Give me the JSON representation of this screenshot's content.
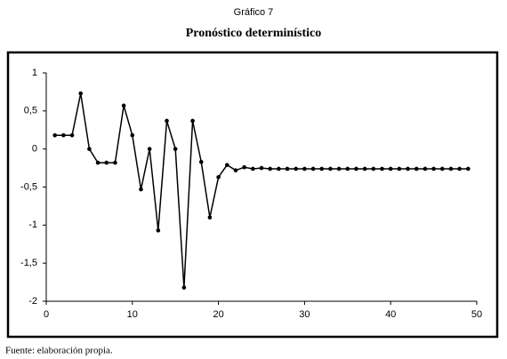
{
  "header": "Gráfico 7",
  "footer": "Fuente: elaboración propia.",
  "chart_data": {
    "type": "line",
    "title": "Pronóstico determinístico",
    "x": [
      1,
      2,
      3,
      4,
      5,
      6,
      7,
      8,
      9,
      10,
      11,
      12,
      13,
      14,
      15,
      16,
      17,
      18,
      19,
      20,
      21,
      22,
      23,
      24,
      25,
      26,
      27,
      28,
      29,
      30,
      31,
      32,
      33,
      34,
      35,
      36,
      37,
      38,
      39,
      40,
      41,
      42,
      43,
      44,
      45,
      46,
      47,
      48,
      49
    ],
    "values": [
      0.18,
      0.18,
      0.18,
      0.73,
      0.0,
      -0.18,
      -0.18,
      -0.18,
      0.57,
      0.18,
      -0.53,
      0.0,
      -1.07,
      0.37,
      0.0,
      -1.82,
      0.37,
      -0.17,
      -0.9,
      -0.37,
      -0.21,
      -0.28,
      -0.24,
      -0.26,
      -0.25,
      -0.26,
      -0.26,
      -0.26,
      -0.26,
      -0.26,
      -0.26,
      -0.26,
      -0.26,
      -0.26,
      -0.26,
      -0.26,
      -0.26,
      -0.26,
      -0.26,
      -0.26,
      -0.26,
      -0.26,
      -0.26,
      -0.26,
      -0.26,
      -0.26,
      -0.26,
      -0.26,
      -0.26
    ],
    "color": "#000000",
    "xlim": [
      0,
      50
    ],
    "xticks": [
      0,
      10,
      20,
      30,
      40,
      50
    ],
    "ylim": [
      -2,
      1
    ],
    "yticks": [
      -2,
      {
        "value": -1.5,
        "label": "-1,5"
      },
      -1,
      {
        "value": -0.5,
        "label": "-0,5"
      },
      0,
      {
        "value": 0.5,
        "label": "0,5"
      },
      1
    ],
    "grid": false,
    "markers": true
  }
}
